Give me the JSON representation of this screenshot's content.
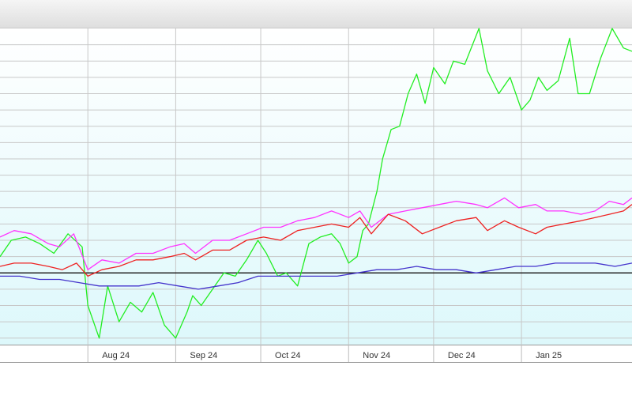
{
  "colors": {
    "bitcoin": "#22ee22",
    "qqq": "#ff33ff",
    "spy": "#ee2222",
    "dow": "#4433cc",
    "plot_top": "#ffffff",
    "plot_bottom": "#ddf8fb",
    "grid": "#c8c8c8",
    "zero_line": "#000000"
  },
  "chart_data": {
    "type": "line",
    "title": "",
    "xlabel": "",
    "ylabel": "",
    "x_start": "2024-07-01",
    "x_end": "2025-02-09",
    "ylim": [
      -22,
      75
    ],
    "grid": true,
    "legend": "none",
    "x_ticks": [
      {
        "label": "Aug 24",
        "date": "2024-08-01"
      },
      {
        "label": "Sep 24",
        "date": "2024-09-01"
      },
      {
        "label": "Oct 24",
        "date": "2024-10-01"
      },
      {
        "label": "Nov 24",
        "date": "2024-11-01"
      },
      {
        "label": "Dec 24",
        "date": "2024-12-01"
      },
      {
        "label": "Jan 25",
        "date": "2025-01-01"
      }
    ],
    "y_gridlines": [
      70,
      65,
      60,
      55,
      50,
      45,
      40,
      35,
      30,
      25,
      20,
      15,
      10,
      5,
      0,
      -5,
      -10,
      -15,
      -20
    ],
    "zero_value": 0,
    "series": [
      {
        "key": "bitcoin",
        "x": [
          "2024-07-01",
          "2024-07-05",
          "2024-07-10",
          "2024-07-15",
          "2024-07-20",
          "2024-07-25",
          "2024-07-30",
          "2024-08-01",
          "2024-08-05",
          "2024-08-08",
          "2024-08-12",
          "2024-08-16",
          "2024-08-20",
          "2024-08-24",
          "2024-08-28",
          "2024-09-01",
          "2024-09-05",
          "2024-09-07",
          "2024-09-10",
          "2024-09-14",
          "2024-09-18",
          "2024-09-22",
          "2024-09-26",
          "2024-09-30",
          "2024-10-03",
          "2024-10-07",
          "2024-10-10",
          "2024-10-14",
          "2024-10-18",
          "2024-10-22",
          "2024-10-26",
          "2024-10-29",
          "2024-11-01",
          "2024-11-04",
          "2024-11-06",
          "2024-11-08",
          "2024-11-11",
          "2024-11-13",
          "2024-11-16",
          "2024-11-19",
          "2024-11-22",
          "2024-11-25",
          "2024-11-28",
          "2024-12-01",
          "2024-12-05",
          "2024-12-08",
          "2024-12-12",
          "2024-12-17",
          "2024-12-20",
          "2024-12-24",
          "2024-12-28",
          "2025-01-01",
          "2025-01-04",
          "2025-01-07",
          "2025-01-10",
          "2025-01-14",
          "2025-01-18",
          "2025-01-21",
          "2025-01-25",
          "2025-01-29",
          "2025-02-02",
          "2025-02-06",
          "2025-02-09"
        ],
        "y": [
          5,
          10,
          11,
          9,
          6,
          12,
          8,
          -10,
          -20,
          -4,
          -15,
          -9,
          -12,
          -6,
          -16,
          -20,
          -12,
          -7,
          -10,
          -5,
          0,
          -1,
          4,
          10,
          6,
          -1,
          0,
          -4,
          9,
          11,
          12,
          9,
          3,
          5,
          13,
          15,
          25,
          35,
          44,
          45,
          55,
          61,
          52,
          63,
          58,
          65,
          64,
          75,
          62,
          55,
          60,
          50,
          53,
          60,
          56,
          59,
          72,
          55,
          55,
          66,
          75,
          69,
          68
        ]
      },
      {
        "key": "qqq",
        "x": [
          "2024-07-01",
          "2024-07-06",
          "2024-07-12",
          "2024-07-18",
          "2024-07-22",
          "2024-07-27",
          "2024-08-01",
          "2024-08-06",
          "2024-08-12",
          "2024-08-18",
          "2024-08-24",
          "2024-08-30",
          "2024-09-04",
          "2024-09-08",
          "2024-09-14",
          "2024-09-20",
          "2024-09-26",
          "2024-10-02",
          "2024-10-08",
          "2024-10-14",
          "2024-10-20",
          "2024-10-26",
          "2024-11-01",
          "2024-11-05",
          "2024-11-09",
          "2024-11-15",
          "2024-11-21",
          "2024-11-27",
          "2024-12-03",
          "2024-12-09",
          "2024-12-16",
          "2024-12-20",
          "2024-12-26",
          "2024-12-31",
          "2025-01-06",
          "2025-01-10",
          "2025-01-16",
          "2025-01-22",
          "2025-01-27",
          "2025-02-01",
          "2025-02-06",
          "2025-02-09"
        ],
        "y": [
          11,
          13,
          12,
          9,
          8,
          12,
          1,
          4,
          3,
          6,
          6,
          8,
          9,
          6,
          10,
          10,
          12,
          14,
          14,
          16,
          17,
          19,
          17,
          19,
          14,
          18,
          19,
          20,
          21,
          22,
          21,
          20,
          23,
          20,
          21,
          19,
          19,
          18,
          19,
          22,
          21,
          23
        ]
      },
      {
        "key": "spy",
        "x": [
          "2024-07-01",
          "2024-07-06",
          "2024-07-12",
          "2024-07-18",
          "2024-07-23",
          "2024-07-28",
          "2024-08-01",
          "2024-08-06",
          "2024-08-12",
          "2024-08-18",
          "2024-08-24",
          "2024-08-30",
          "2024-09-04",
          "2024-09-08",
          "2024-09-14",
          "2024-09-20",
          "2024-09-26",
          "2024-10-02",
          "2024-10-08",
          "2024-10-14",
          "2024-10-20",
          "2024-10-26",
          "2024-11-01",
          "2024-11-05",
          "2024-11-09",
          "2024-11-15",
          "2024-11-21",
          "2024-11-27",
          "2024-12-03",
          "2024-12-09",
          "2024-12-16",
          "2024-12-20",
          "2024-12-26",
          "2024-12-31",
          "2025-01-06",
          "2025-01-10",
          "2025-01-16",
          "2025-01-22",
          "2025-01-27",
          "2025-02-01",
          "2025-02-06",
          "2025-02-09"
        ],
        "y": [
          2,
          3,
          3,
          2,
          1,
          3,
          -1,
          1,
          2,
          4,
          4,
          5,
          6,
          4,
          7,
          7,
          10,
          11,
          10,
          13,
          14,
          15,
          14,
          17,
          12,
          18,
          16,
          12,
          14,
          16,
          17,
          13,
          16,
          14,
          12,
          14,
          15,
          16,
          17,
          18,
          19,
          21
        ]
      },
      {
        "key": "dow",
        "x": [
          "2024-07-01",
          "2024-07-08",
          "2024-07-15",
          "2024-07-22",
          "2024-07-29",
          "2024-08-05",
          "2024-08-12",
          "2024-08-19",
          "2024-08-26",
          "2024-09-02",
          "2024-09-09",
          "2024-09-16",
          "2024-09-23",
          "2024-09-30",
          "2024-10-07",
          "2024-10-14",
          "2024-10-21",
          "2024-10-28",
          "2024-11-04",
          "2024-11-11",
          "2024-11-18",
          "2024-11-25",
          "2024-12-02",
          "2024-12-09",
          "2024-12-16",
          "2024-12-23",
          "2024-12-30",
          "2025-01-06",
          "2025-01-13",
          "2025-01-20",
          "2025-01-27",
          "2025-02-03",
          "2025-02-09"
        ],
        "y": [
          -1,
          -1,
          -2,
          -2,
          -3,
          -4,
          -4,
          -4,
          -3,
          -4,
          -5,
          -4,
          -3,
          -1,
          -1,
          -1,
          -1,
          -1,
          0,
          1,
          1,
          2,
          1,
          1,
          0,
          1,
          2,
          2,
          3,
          3,
          3,
          2,
          3
        ]
      }
    ]
  }
}
